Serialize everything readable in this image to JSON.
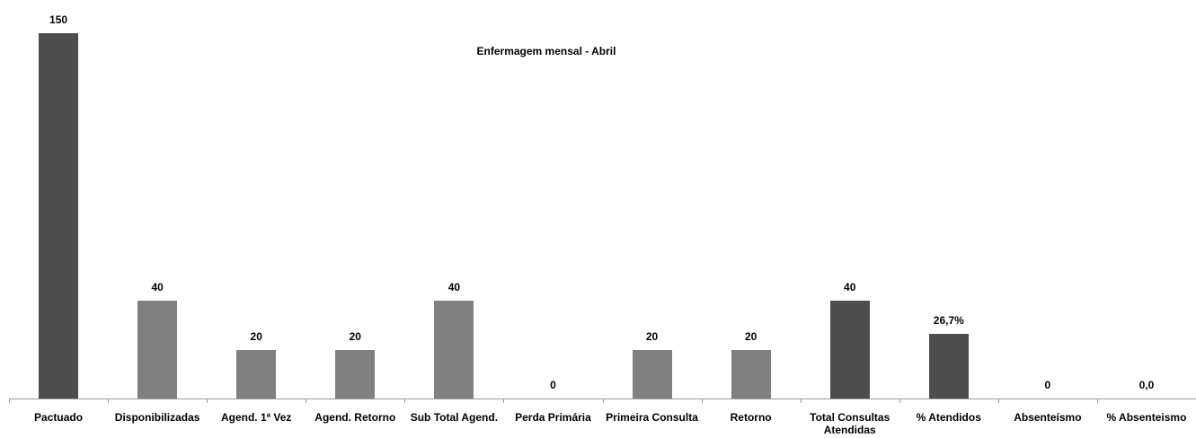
{
  "chart_data": {
    "type": "bar",
    "title": "Enfermagem mensal - Abril",
    "categories": [
      "Pactuado",
      "Disponibilizadas",
      "Agend. 1ª Vez",
      "Agend. Retorno",
      "Sub Total Agend.",
      "Perda Primária",
      "Primeira Consulta",
      "Retorno",
      "Total Consultas Atendidas",
      "% Atendidos",
      "Absenteísmo",
      "% Absenteismo"
    ],
    "values": [
      150,
      40,
      20,
      20,
      40,
      0,
      20,
      20,
      40,
      26.7,
      0,
      0
    ],
    "value_labels": [
      "150",
      "40",
      "20",
      "20",
      "40",
      "0",
      "20",
      "20",
      "40",
      "26,7%",
      "0",
      "0,0"
    ],
    "colors": [
      "#4d4d4d",
      "#808080",
      "#808080",
      "#808080",
      "#808080",
      "#808080",
      "#808080",
      "#808080",
      "#4d4d4d",
      "#4d4d4d",
      "#808080",
      "#808080"
    ]
  }
}
